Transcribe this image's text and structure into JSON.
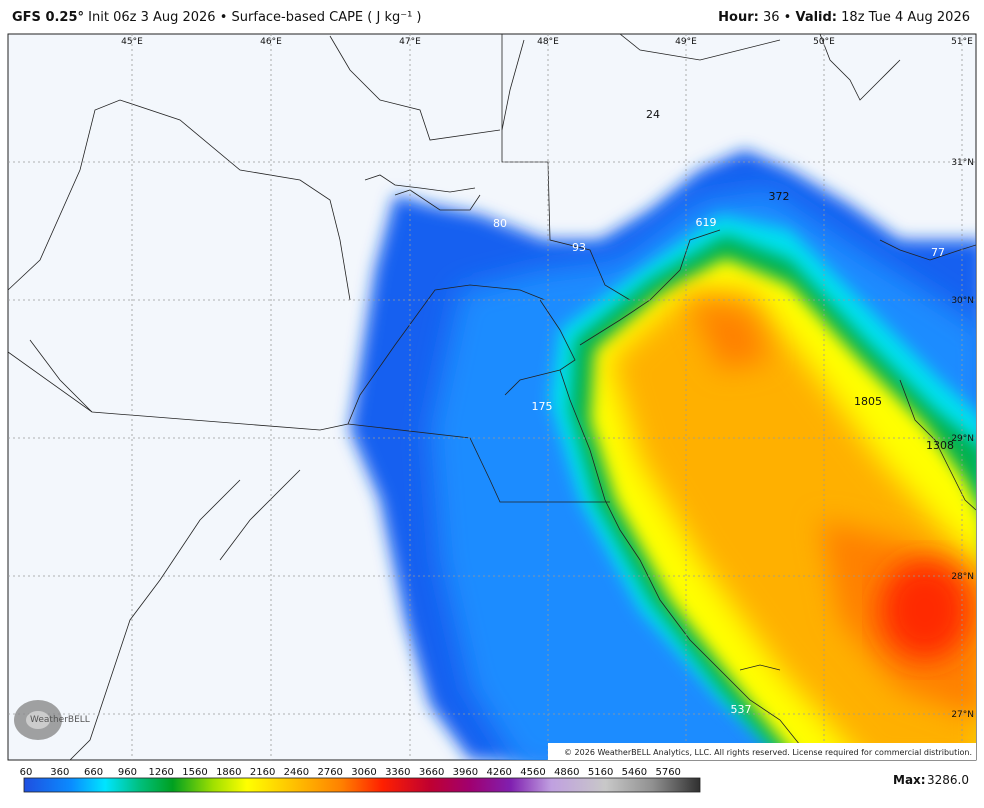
{
  "header": {
    "model": "GFS 0.25°",
    "init": "Init 06z 3 Aug 2026",
    "separator": "•",
    "field": "Surface-based CAPE ( J kg⁻¹ )",
    "hour_label": "Hour:",
    "hour": "36",
    "valid_label": "Valid:",
    "valid": "18z Tue 4 Aug 2026"
  },
  "map": {
    "longitudes": [
      "45°E",
      "46°E",
      "47°E",
      "48°E",
      "49°E",
      "50°E",
      "51°E"
    ],
    "latitudes": [
      "31°N",
      "30°N",
      "29°N",
      "28°N",
      "27°N"
    ],
    "point_values": [
      "24",
      "372",
      "619",
      "80",
      "93",
      "77",
      "175",
      "1805",
      "1308",
      "537"
    ],
    "logo": "WeatherBELL",
    "copyright": "© 2026 WeatherBELL Analytics, LLC. All rights reserved. License required for commercial distribution."
  },
  "colorbar": {
    "labels": [
      "60",
      "360",
      "660",
      "960",
      "1260",
      "1560",
      "1860",
      "2160",
      "2460",
      "2760",
      "3060",
      "3360",
      "3660",
      "3960",
      "4260",
      "4560",
      "4860",
      "5160",
      "5460",
      "5760"
    ]
  },
  "footer": {
    "max_label": "Max:",
    "max": "3286.0"
  }
}
